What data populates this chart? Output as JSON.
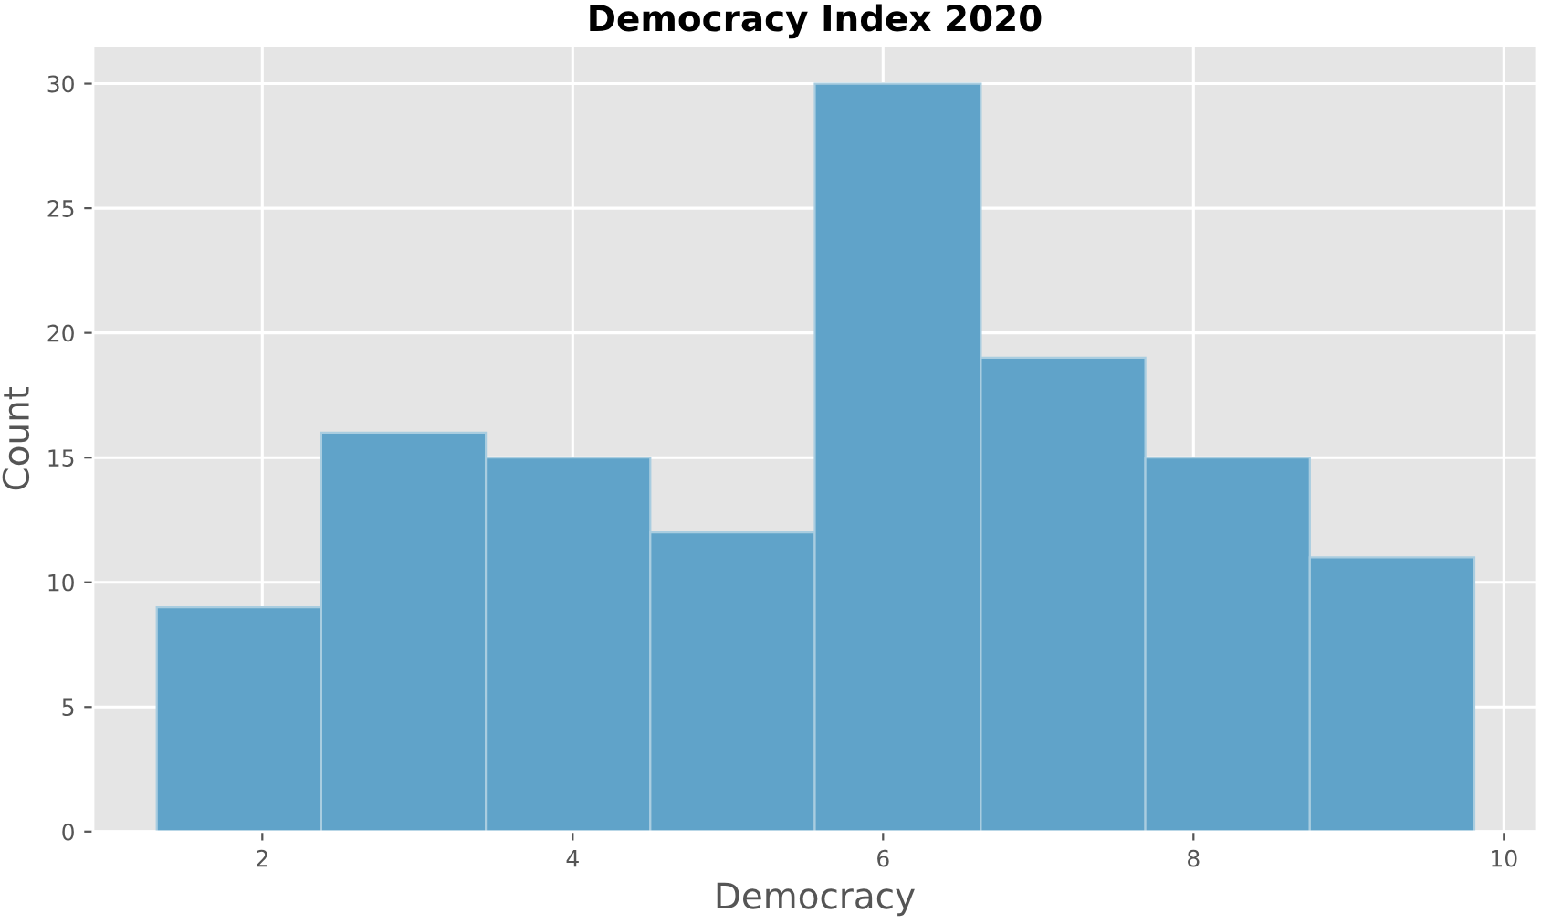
{
  "chart_data": {
    "type": "histogram",
    "title": "Democracy Index 2020",
    "xlabel": "Democracy",
    "ylabel": "Count",
    "bins": [
      1.32,
      2.38,
      3.44,
      4.5,
      5.56,
      6.63,
      7.69,
      8.75,
      9.81
    ],
    "values": [
      9,
      16,
      15,
      12,
      30,
      19,
      15,
      11
    ],
    "color": "#60a3c9",
    "xlim": [
      0.91,
      10.21
    ],
    "ylim": [
      0,
      31.5
    ],
    "xticks": [
      2,
      4,
      6,
      8,
      10
    ],
    "yticks": [
      0,
      5,
      10,
      15,
      20,
      25,
      30
    ],
    "grid": true
  }
}
